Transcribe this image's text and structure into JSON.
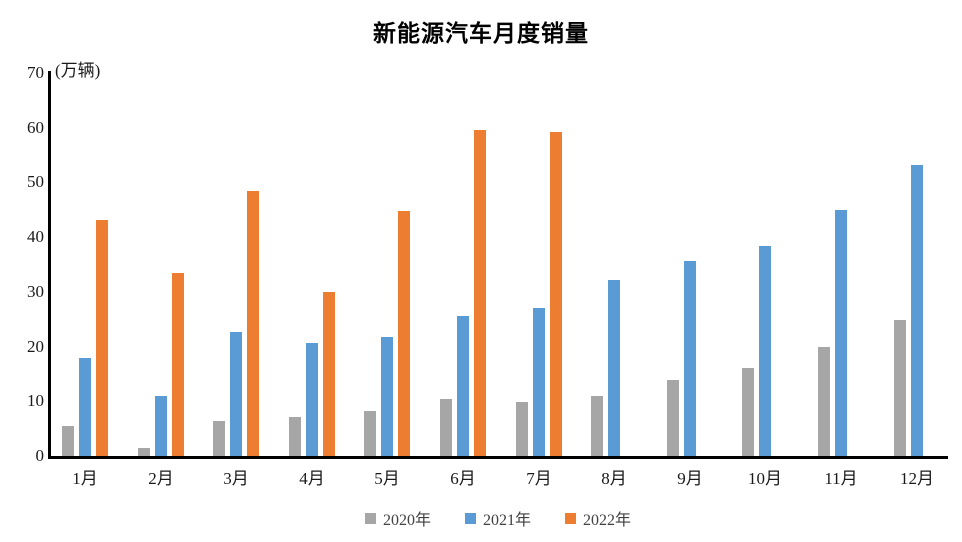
{
  "chart_data": {
    "type": "bar",
    "title": "新能源汽车月度销量",
    "ylabel": "(万辆)",
    "categories": [
      "1月",
      "2月",
      "3月",
      "4月",
      "5月",
      "6月",
      "7月",
      "8月",
      "9月",
      "10月",
      "11月",
      "12月"
    ],
    "series": [
      {
        "name": "2020年",
        "color": "#A6A6A6",
        "values": [
          5.4,
          1.5,
          6.4,
          7.2,
          8.2,
          10.4,
          9.8,
          10.9,
          13.8,
          16.0,
          20.0,
          24.8
        ]
      },
      {
        "name": "2021年",
        "color": "#5B9BD5",
        "values": [
          17.9,
          11.0,
          22.6,
          20.6,
          21.7,
          25.6,
          27.1,
          32.1,
          35.7,
          38.3,
          45.0,
          53.1
        ]
      },
      {
        "name": "2022年",
        "color": "#ED7D31",
        "values": [
          43.1,
          33.4,
          48.4,
          29.9,
          44.7,
          59.6,
          59.3,
          null,
          null,
          null,
          null,
          null
        ]
      }
    ],
    "ylim": [
      0,
      70
    ],
    "y_ticks": [
      0,
      10,
      20,
      30,
      40,
      50,
      60,
      70
    ],
    "grid": false,
    "legend_position": "bottom"
  }
}
